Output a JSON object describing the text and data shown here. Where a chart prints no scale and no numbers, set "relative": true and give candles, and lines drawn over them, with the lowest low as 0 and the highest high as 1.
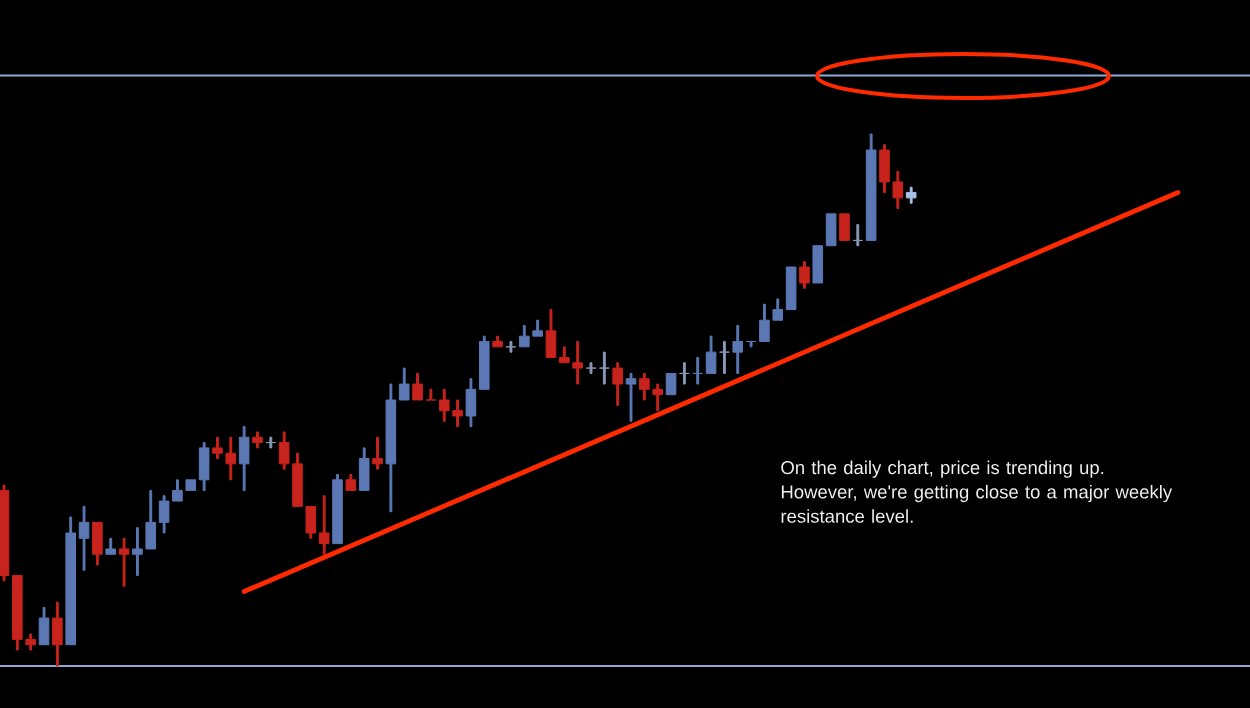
{
  "chart_data": {
    "type": "candlestick",
    "relative": true,
    "tick_labels": false,
    "categories": [
      null,
      null,
      null,
      null,
      null,
      null,
      null,
      null,
      null,
      null,
      null,
      null,
      null,
      null,
      null,
      null,
      null,
      null,
      null,
      null,
      null,
      null,
      null,
      null,
      null,
      null,
      null,
      null,
      null,
      null,
      null,
      null,
      null,
      null,
      null,
      null,
      null,
      null,
      null,
      null,
      null,
      null,
      null,
      null,
      null,
      null,
      null,
      null,
      null,
      null,
      null,
      null,
      null,
      null,
      null,
      null,
      null,
      null,
      null,
      null,
      null,
      null,
      null,
      null,
      null,
      null,
      null,
      null,
      null,
      null,
      null,
      null,
      null,
      null,
      null,
      null,
      null,
      null,
      null,
      null,
      null,
      null,
      null,
      null,
      null,
      null,
      null,
      null,
      null,
      null,
      null,
      null,
      null,
      null
    ],
    "series": [
      {
        "type": "candlestick",
        "ohlc": [
          [
            0.33,
            0.34,
            0.16,
            0.17
          ],
          [
            0.17,
            0.17,
            0.03,
            0.05
          ],
          [
            0.05,
            0.06,
            0.03,
            0.04
          ],
          [
            0.04,
            0.11,
            0.04,
            0.09
          ],
          [
            0.09,
            0.12,
            0,
            0.04
          ],
          [
            0.04,
            0.28,
            0.04,
            0.25
          ],
          [
            0.24,
            0.3,
            0.18,
            0.27
          ],
          [
            0.27,
            0.27,
            0.19,
            0.21
          ],
          [
            0.21,
            0.24,
            0.21,
            0.22
          ],
          [
            0.22,
            0.24,
            0.15,
            0.21
          ],
          [
            0.21,
            0.26,
            0.17,
            0.22
          ],
          [
            0.22,
            0.33,
            0.22,
            0.27
          ],
          [
            0.27,
            0.32,
            0.25,
            0.31
          ],
          [
            0.31,
            0.35,
            0.31,
            0.33
          ],
          [
            0.33,
            0.35,
            0.33,
            0.35
          ],
          [
            0.35,
            0.42,
            0.33,
            0.41
          ],
          [
            0.41,
            0.43,
            0.39,
            0.4
          ],
          [
            0.4,
            0.43,
            0.35,
            0.38
          ],
          [
            0.38,
            0.45,
            0.33,
            0.43
          ],
          [
            0.43,
            0.44,
            0.41,
            0.42
          ],
          [
            0.42,
            0.43,
            0.41,
            0.42
          ],
          [
            0.42,
            0.44,
            0.37,
            0.38
          ],
          [
            0.38,
            0.4,
            0.3,
            0.3
          ],
          [
            0.3,
            0.3,
            0.24,
            0.25
          ],
          [
            0.25,
            0.32,
            0.21,
            0.23
          ],
          [
            0.23,
            0.36,
            0.23,
            0.35
          ],
          [
            0.35,
            0.36,
            0.33,
            0.33
          ],
          [
            0.33,
            0.41,
            0.33,
            0.39
          ],
          [
            0.39,
            0.43,
            0.37,
            0.38
          ],
          [
            0.38,
            0.53,
            0.29,
            0.5
          ],
          [
            0.5,
            0.56,
            0.5,
            0.53
          ],
          [
            0.53,
            0.55,
            0.5,
            0.5
          ],
          [
            0.5,
            0.52,
            0.5,
            0.5
          ],
          [
            0.5,
            0.52,
            0.46,
            0.48
          ],
          [
            0.48,
            0.5,
            0.45,
            0.47
          ],
          [
            0.47,
            0.54,
            0.45,
            0.52
          ],
          [
            0.52,
            0.62,
            0.52,
            0.61
          ],
          [
            0.61,
            0.62,
            0.6,
            0.6
          ],
          [
            0.6,
            0.61,
            0.59,
            0.6
          ],
          [
            0.6,
            0.64,
            0.6,
            0.62
          ],
          [
            0.62,
            0.65,
            0.62,
            0.63
          ],
          [
            0.63,
            0.67,
            0.58,
            0.58
          ],
          [
            0.58,
            0.6,
            0.57,
            0.57
          ],
          [
            0.57,
            0.61,
            0.53,
            0.56
          ],
          [
            0.56,
            0.57,
            0.55,
            0.56
          ],
          [
            0.56,
            0.59,
            0.53,
            0.56
          ],
          [
            0.56,
            0.57,
            0.49,
            0.53
          ],
          [
            0.53,
            0.55,
            0.46,
            0.54
          ],
          [
            0.54,
            0.55,
            0.5,
            0.52
          ],
          [
            0.52,
            0.53,
            0.48,
            0.51
          ],
          [
            0.51,
            0.55,
            0.51,
            0.55
          ],
          [
            0.55,
            0.57,
            0.53,
            0.55
          ],
          [
            0.55,
            0.58,
            0.53,
            0.55
          ],
          [
            0.55,
            0.62,
            0.55,
            0.59
          ],
          [
            0.59,
            0.61,
            0.55,
            0.59
          ],
          [
            0.59,
            0.64,
            0.55,
            0.61
          ],
          [
            0.61,
            0.61,
            0.6,
            0.61
          ],
          [
            0.61,
            0.68,
            0.61,
            0.65
          ],
          [
            0.65,
            0.69,
            0.65,
            0.67
          ],
          [
            0.67,
            0.75,
            0.67,
            0.75
          ],
          [
            0.75,
            0.76,
            0.71,
            0.72
          ],
          [
            0.72,
            0.79,
            0.72,
            0.79
          ],
          [
            0.79,
            0.85,
            0.79,
            0.85
          ],
          [
            0.85,
            0.85,
            0.8,
            0.8
          ],
          [
            0.8,
            0.83,
            0.79,
            0.8
          ],
          [
            0.8,
            1,
            0.8,
            0.97
          ],
          [
            0.97,
            0.98,
            0.89,
            0.91
          ],
          [
            0.91,
            0.93,
            0.86,
            0.88
          ],
          [
            0.88,
            0.9,
            0.87,
            0.89
          ],
          null,
          null,
          null,
          null,
          null,
          null,
          null,
          null,
          null,
          null,
          null,
          null,
          null,
          null,
          null,
          null,
          null,
          null,
          null,
          null,
          null,
          null,
          null,
          null,
          null
        ],
        "colors": [
          "#c8231c",
          "#c8231c",
          "#c8231c",
          "#5b78b4",
          "#c8231c",
          "#5b78b4",
          "#5b78b4",
          "#c8231c",
          "#5b78b4",
          "#c8231c",
          "#5b78b4",
          "#5b78b4",
          "#5b78b4",
          "#5b78b4",
          "#5b78b4",
          "#5b78b4",
          "#c8231c",
          "#c8231c",
          "#5b78b4",
          "#c8231c",
          "#8a9ab8",
          "#c8231c",
          "#c8231c",
          "#c8231c",
          "#c8231c",
          "#5b78b4",
          "#c8231c",
          "#5b78b4",
          "#c8231c",
          "#5b78b4",
          "#5b78b4",
          "#c8231c",
          "#c8231c",
          "#c8231c",
          "#c8231c",
          "#5b78b4",
          "#5b78b4",
          "#c8231c",
          "#8a9ab8",
          "#5b78b4",
          "#5b78b4",
          "#c8231c",
          "#c8231c",
          "#c8231c",
          "#8a9ab8",
          "#8a9ab8",
          "#c8231c",
          "#5b78b4",
          "#c8231c",
          "#c8231c",
          "#5b78b4",
          "#8a9ab8",
          "#5b78b4",
          "#5b78b4",
          "#8a9ab8",
          "#5b78b4",
          "#5b78b4",
          "#5b78b4",
          "#5b78b4",
          "#5b78b4",
          "#c8231c",
          "#5b78b4",
          "#5b78b4",
          "#c8231c",
          "#8a9ab8",
          "#5b78b4",
          "#c8231c",
          "#c8231c",
          "#a9c1e8",
          null,
          null,
          null,
          null,
          null,
          null,
          null,
          null,
          null,
          null,
          null,
          null,
          null,
          null,
          null,
          null,
          null,
          null,
          null,
          null,
          null,
          null,
          null,
          null,
          null
        ]
      },
      {
        "type": "line",
        "values": [
          null,
          null,
          null,
          null,
          null,
          null,
          null,
          null,
          null,
          null,
          null,
          null,
          null,
          null,
          null,
          null,
          null,
          null,
          0.14,
          null,
          null,
          null,
          null,
          null,
          null,
          null,
          null,
          null,
          null,
          null,
          null,
          null,
          null,
          null,
          null,
          null,
          null,
          null,
          null,
          null,
          null,
          null,
          null,
          null,
          null,
          null,
          null,
          null,
          null,
          null,
          null,
          null,
          null,
          null,
          null,
          null,
          null,
          null,
          null,
          null,
          null,
          null,
          null,
          null,
          null,
          null,
          null,
          null,
          null,
          null,
          null,
          null,
          null,
          null,
          null,
          null,
          null,
          null,
          null,
          null,
          null,
          null,
          null,
          null,
          null,
          null,
          null,
          null,
          0.89,
          null,
          null,
          null,
          null,
          null
        ],
        "color": "#ff2a00"
      }
    ],
    "ref_lines": [
      {
        "axis": "y",
        "value": 1.11,
        "color": "#8fa9d6"
      },
      {
        "axis": "y",
        "value": 0,
        "color": "#8fa9d6"
      }
    ],
    "annotations": [
      "On the daily chart, price is trending up. However, we're getting close to a major weekly resistance level."
    ]
  }
}
